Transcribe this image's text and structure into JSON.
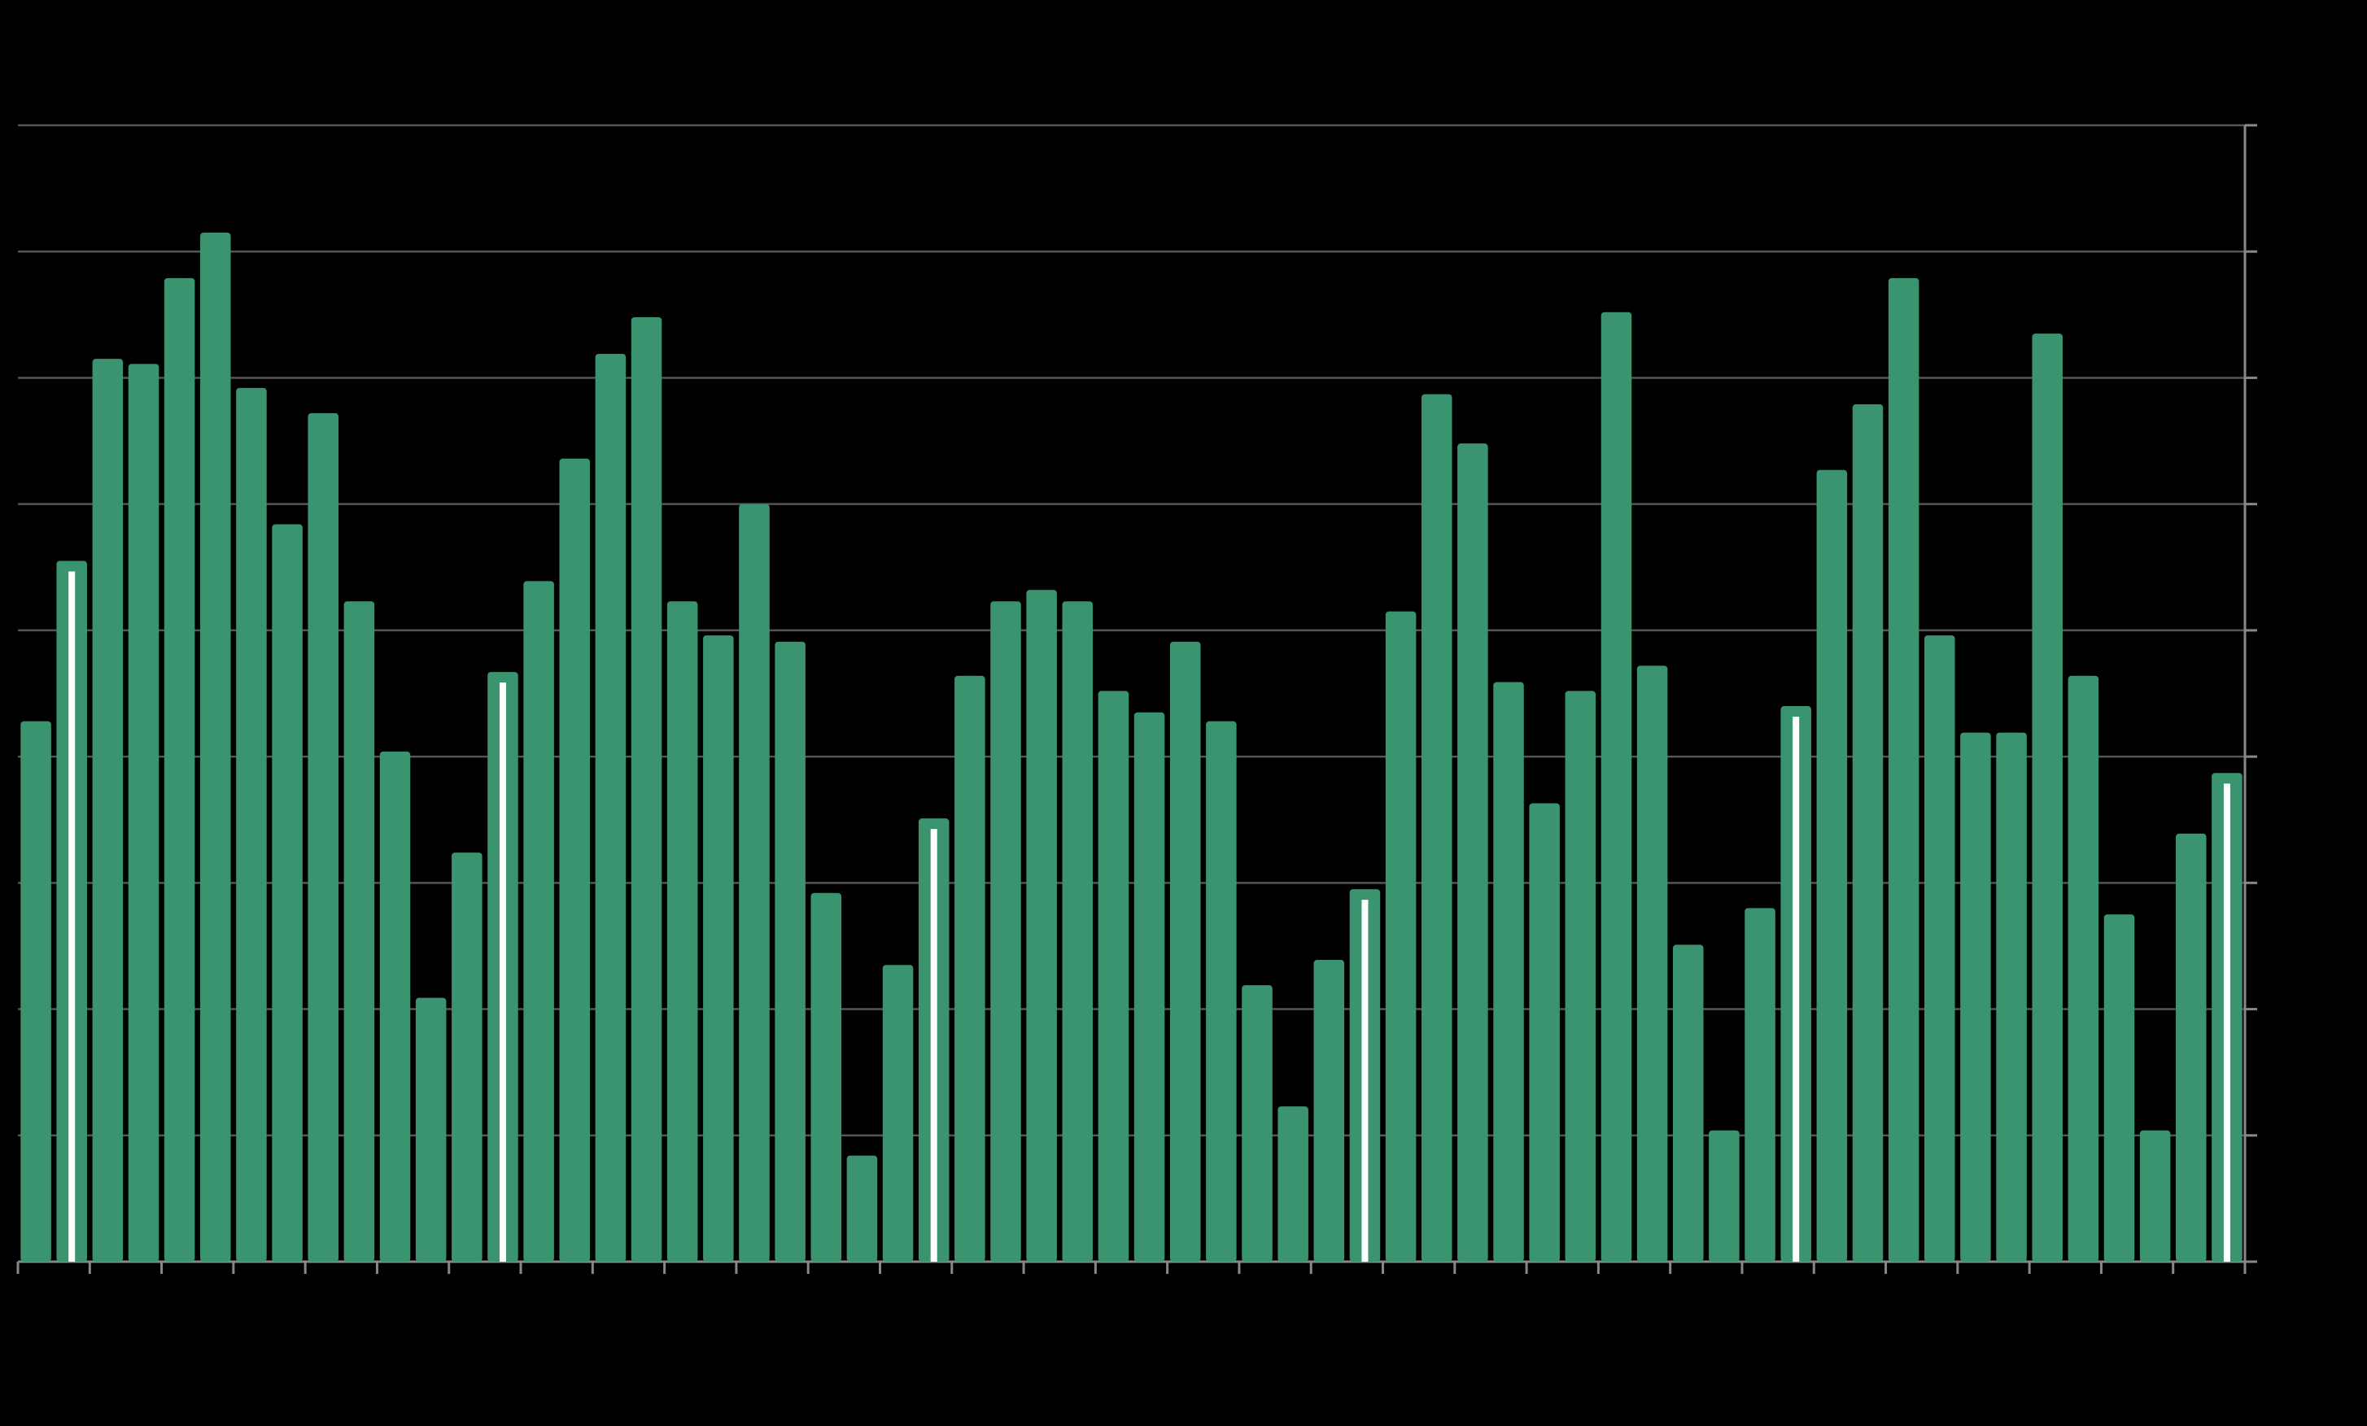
{
  "chart_data": {
    "type": "bar",
    "categories": [
      null,
      null,
      null,
      null,
      null,
      null,
      null,
      null,
      null,
      null,
      null,
      null,
      null,
      null,
      null,
      null,
      null,
      null,
      null,
      null,
      null,
      null,
      null,
      null,
      null,
      null,
      null,
      null,
      null,
      null,
      null,
      null,
      null,
      null,
      null,
      null,
      null,
      null,
      null,
      null,
      null,
      null,
      null,
      null,
      null,
      null,
      null,
      null,
      null,
      null,
      null,
      null,
      null,
      null,
      null,
      null,
      null,
      null,
      null,
      null,
      null,
      null
    ],
    "values": [
      4.28,
      5.55,
      7.15,
      7.11,
      7.79,
      8.15,
      6.92,
      5.84,
      6.72,
      5.23,
      4.04,
      2.09,
      3.24,
      4.67,
      5.39,
      6.36,
      7.19,
      7.48,
      5.23,
      4.96,
      6.0,
      4.91,
      2.92,
      0.84,
      2.35,
      3.51,
      4.64,
      5.23,
      5.32,
      5.23,
      4.52,
      4.35,
      4.91,
      4.28,
      2.19,
      1.23,
      2.39,
      2.95,
      5.15,
      6.87,
      6.48,
      4.59,
      3.63,
      4.52,
      7.52,
      4.72,
      2.51,
      1.04,
      2.8,
      4.4,
      6.27,
      6.79,
      7.79,
      4.96,
      4.19,
      4.19,
      7.35,
      4.64,
      2.75,
      1.04,
      3.39,
      3.87
    ],
    "color": "#3a9470",
    "highlighted": [
      1,
      13,
      25,
      37,
      49,
      61
    ],
    "highlight_color": "#ffffff",
    "ylim": [
      0,
      9
    ],
    "yticks": [
      0,
      1,
      2,
      3,
      4,
      5,
      6,
      7,
      8,
      9
    ],
    "grid": true
  }
}
